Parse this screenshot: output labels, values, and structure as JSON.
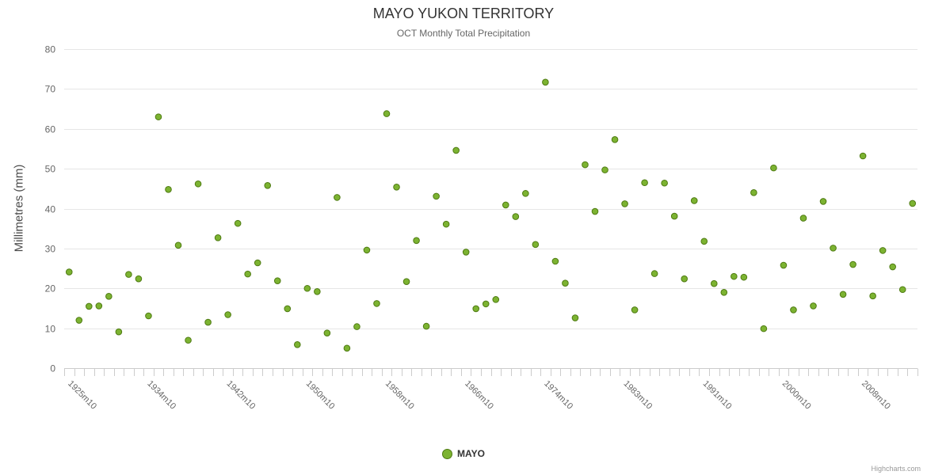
{
  "chart_data": {
    "type": "scatter",
    "title": "MAYO YUKON TERRITORY",
    "subtitle": "OCT Monthly Total Precipitation",
    "ylabel": "Millimetres (mm)",
    "ylim": [
      0,
      80
    ],
    "y_ticks": [
      0,
      10,
      20,
      30,
      40,
      50,
      60,
      70,
      80
    ],
    "x_label_step": 8,
    "grid": true,
    "legend_position": "bottom",
    "credit": "Highcharts.com",
    "categories": [
      "1925m10",
      "1926m10",
      "1928m10",
      "1929m10",
      "1930m10",
      "1931m10",
      "1932m10",
      "1933m10",
      "1934m10",
      "1935m10",
      "1936m10",
      "1937m10",
      "1938m10",
      "1939m10",
      "1940m10",
      "1941m10",
      "1942m10",
      "1943m10",
      "1944m10",
      "1945m10",
      "1946m10",
      "1947m10",
      "1948m10",
      "1949m10",
      "1950m10",
      "1951m10",
      "1952m10",
      "1953m10",
      "1954m10",
      "1955m10",
      "1956m10",
      "1957m10",
      "1958m10",
      "1959m10",
      "1960m10",
      "1961m10",
      "1962m10",
      "1963m10",
      "1964m10",
      "1965m10",
      "1966m10",
      "1967m10",
      "1968m10",
      "1969m10",
      "1970m10",
      "1971m10",
      "1972m10",
      "1973m10",
      "1974m10",
      "1975m10",
      "1977m10",
      "1978m10",
      "1979m10",
      "1980m10",
      "1981m10",
      "1982m10",
      "1983m10",
      "1984m10",
      "1985m10",
      "1986m10",
      "1987m10",
      "1988m10",
      "1989m10",
      "1990m10",
      "1991m10",
      "1992m10",
      "1994m10",
      "1995m10",
      "1996m10",
      "1997m10",
      "1998m10",
      "1999m10",
      "2000m10",
      "2001m10",
      "2002m10",
      "2003m10",
      "2004m10",
      "2005m10",
      "2006m10",
      "2007m10",
      "2008m10",
      "2009m10",
      "2010m10",
      "2011m10",
      "2012m10",
      "2013m10"
    ],
    "series": [
      {
        "name": "MAYO",
        "color": "#7cb331",
        "marker_line_color": "#4e7a12",
        "values": [
          24.1,
          12.0,
          15.5,
          15.6,
          18.0,
          9.1,
          23.5,
          22.4,
          13.1,
          63.0,
          44.8,
          30.8,
          7.0,
          46.2,
          11.5,
          32.7,
          13.4,
          36.3,
          23.6,
          26.4,
          45.8,
          21.9,
          14.9,
          5.9,
          20.0,
          19.2,
          8.8,
          42.8,
          5.0,
          10.4,
          29.6,
          16.2,
          63.8,
          45.4,
          21.7,
          32.0,
          10.5,
          43.1,
          36.1,
          54.6,
          29.1,
          14.9,
          16.1,
          17.2,
          40.9,
          38.0,
          43.8,
          31.0,
          71.7,
          26.8,
          21.3,
          12.6,
          51.0,
          39.3,
          49.7,
          57.3,
          41.2,
          14.6,
          46.5,
          23.7,
          46.4,
          38.1,
          22.4,
          42.0,
          31.8,
          21.2,
          19.0,
          23.0,
          22.8,
          44.0,
          9.9,
          50.2,
          25.8,
          14.6,
          37.6,
          15.6,
          41.8,
          30.1,
          18.5,
          26.0,
          53.2,
          18.1,
          29.5,
          25.4,
          19.7,
          41.3
        ]
      }
    ]
  }
}
